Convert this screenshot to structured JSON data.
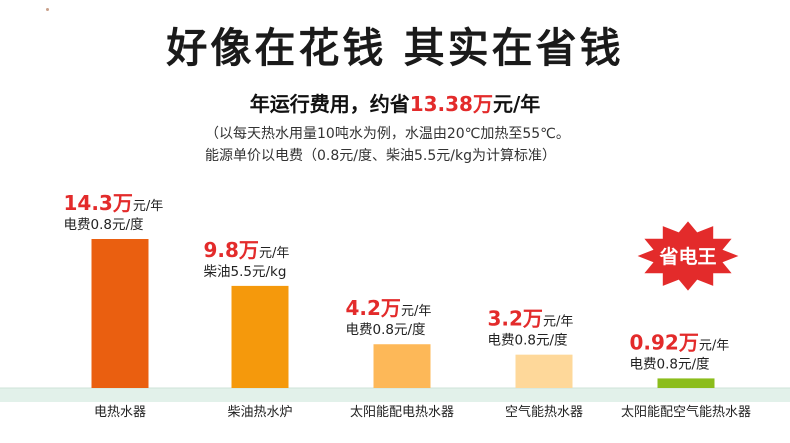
{
  "header": {
    "title": "好像在花钱 其实在省钱",
    "subtitle_pre": "年运行费用，约省",
    "subtitle_value": "13.38万",
    "subtitle_post": "元/年",
    "note_line1": "（以每天热水用量10吨水为例，水温由20℃加热至55℃。",
    "note_line2": "能源单价以电费（0.8元/度、柴油5.5元/kg为计算标准）"
  },
  "badge": {
    "label": "省电王",
    "color": "#e32b2b"
  },
  "colors": {
    "red_text": "#e32b2b",
    "ground": "#e2f1ea"
  },
  "chart_data": {
    "type": "bar",
    "title": "好像在花钱 其实在省钱",
    "categories": [
      "电热水器",
      "柴油热水炉",
      "太阳能配电热水器",
      "空气能热水器",
      "太阳能配空气能热水器"
    ],
    "values": [
      14.3,
      9.8,
      4.2,
      3.2,
      0.92
    ],
    "value_labels": [
      "14.3万",
      "9.8万",
      "4.2万",
      "3.2万",
      "0.92万"
    ],
    "value_unit": "元/年",
    "price_labels": [
      "电费0.8元/度",
      "柴油5.5元/kg",
      "电费0.8元/度",
      "电费0.8元/度",
      "电费0.8元/度"
    ],
    "bar_colors": [
      "#ea5f10",
      "#f5990c",
      "#fdb858",
      "#fed89a",
      "#8bbd1c"
    ],
    "xlabel": "",
    "ylabel": "",
    "ylim": [
      0,
      14.3
    ],
    "grid": false,
    "legend": "none"
  }
}
